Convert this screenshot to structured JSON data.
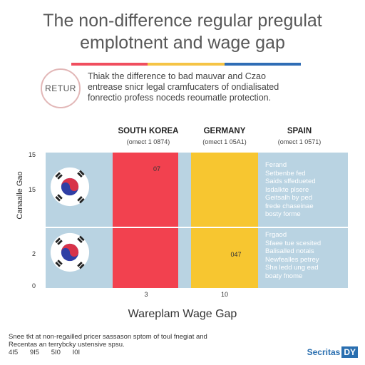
{
  "header": {
    "title_line1": "The non-difference regular pregulat",
    "title_line2": "emplotnent and wage gap",
    "badge": "RETUR",
    "intro": [
      "Thiak the difference to bad mauvar and Czao",
      "entrease snicr legal cramfucaters of ondialisated",
      "fonrectio profess noceds reoumatle protection."
    ],
    "stripe_colors": [
      "#f04e5e",
      "#f5c445",
      "#2f6db5"
    ]
  },
  "chart_data": {
    "type": "bar",
    "xlabel": "Wareplam Wage Gap",
    "ylabel": "Canaalle Gao",
    "yticks": [
      "15",
      "15",
      "2",
      "0"
    ],
    "xticks": [
      "3",
      "10"
    ],
    "columns": [
      {
        "name": "SOUTH KOREA",
        "sub": "(omect 1 0874)"
      },
      {
        "name": "GERMANY",
        "sub": "(omect 1 05A1)"
      },
      {
        "name": "SPAIN",
        "sub": "(omect 1 0571)"
      }
    ],
    "series": [
      {
        "name": "SOUTH KOREA",
        "label": "07",
        "value": 1.0,
        "color": "#f2414f"
      },
      {
        "name": "GERMANY",
        "label": "047",
        "value": 1.0,
        "color": "#f7c630"
      }
    ],
    "notes_top": [
      "Ferand",
      "Setbenbe fed",
      "Saids sffedueted",
      "Isdalkte plsere",
      "Geitsalh by ped",
      "frede chaseinae",
      "bosty forme"
    ],
    "notes_bottom": [
      "Frgaod",
      "Sfaee tue scesited",
      "Balisalled notais",
      "Newfealles petrey",
      "Sha ledd ung ead",
      "boaty fnome"
    ]
  },
  "footer": {
    "lines": [
      "Snee tkt at non-regailled pricer sassason sptom of toul fnegiat and",
      "Recentas an terrybcky ustensive spsu."
    ],
    "codes": [
      "4I5",
      "9I5",
      "5I0",
      "I0I"
    ],
    "logo_text": "Secritas",
    "logo_mark": "DY"
  }
}
